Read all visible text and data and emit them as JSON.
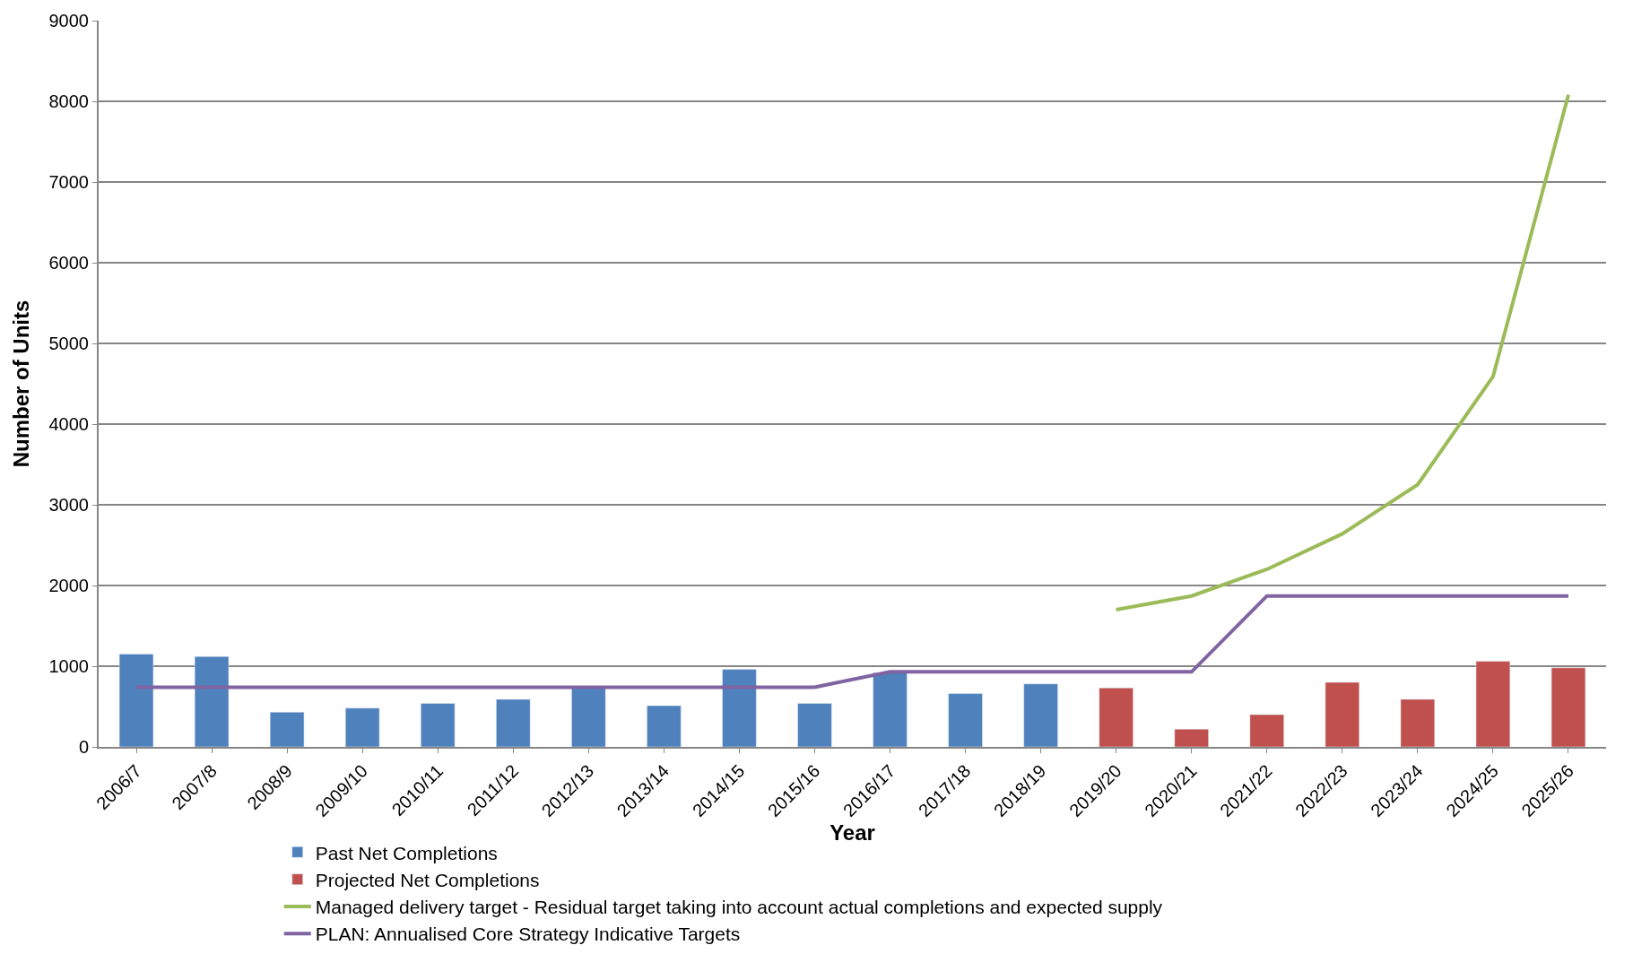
{
  "chart_data": {
    "type": "bar",
    "xlabel": "Year",
    "ylabel": "Number of Units",
    "categories": [
      "2006/7",
      "2007/8",
      "2008/9",
      "2009/10",
      "2010/11",
      "2011/12",
      "2012/13",
      "2013/14",
      "2014/15",
      "2015/16",
      "2016/17",
      "2017/18",
      "2018/19",
      "2019/20",
      "2020/21",
      "2021/22",
      "2022/23",
      "2023/24",
      "2024/25",
      "2025/26"
    ],
    "series": [
      {
        "name": "Past Net Completions",
        "color": "#4f81bd",
        "values": [
          1150,
          1120,
          430,
          480,
          540,
          590,
          750,
          510,
          960,
          540,
          920,
          660,
          780,
          null,
          null,
          null,
          null,
          null,
          null,
          null
        ]
      },
      {
        "name": "Projected Net Completions",
        "color": "#c0504d",
        "values": [
          null,
          null,
          null,
          null,
          null,
          null,
          null,
          null,
          null,
          null,
          null,
          null,
          null,
          730,
          220,
          400,
          800,
          590,
          1060,
          980
        ]
      },
      {
        "name": "Managed delivery target - Residual target taking into account actual completions and expected supply",
        "type": "line",
        "color": "#9bbb59",
        "values": [
          null,
          null,
          null,
          null,
          null,
          null,
          null,
          null,
          null,
          null,
          null,
          null,
          null,
          1700,
          1870,
          2200,
          2640,
          3250,
          4590,
          8080
        ]
      },
      {
        "name": "PLAN: Annualised Core Strategy Indicative Targets",
        "type": "line",
        "color": "#8064a2",
        "values": [
          740,
          740,
          740,
          740,
          740,
          740,
          740,
          740,
          740,
          740,
          930,
          930,
          930,
          930,
          930,
          1870,
          1870,
          1870,
          1870,
          1870
        ]
      }
    ],
    "ylim": [
      0,
      9000
    ],
    "yticks": [
      0,
      1000,
      2000,
      3000,
      4000,
      5000,
      6000,
      7000,
      8000,
      9000
    ],
    "grid": "y",
    "legend": "bottom",
    "marker": "none",
    "line_style": "solid"
  }
}
